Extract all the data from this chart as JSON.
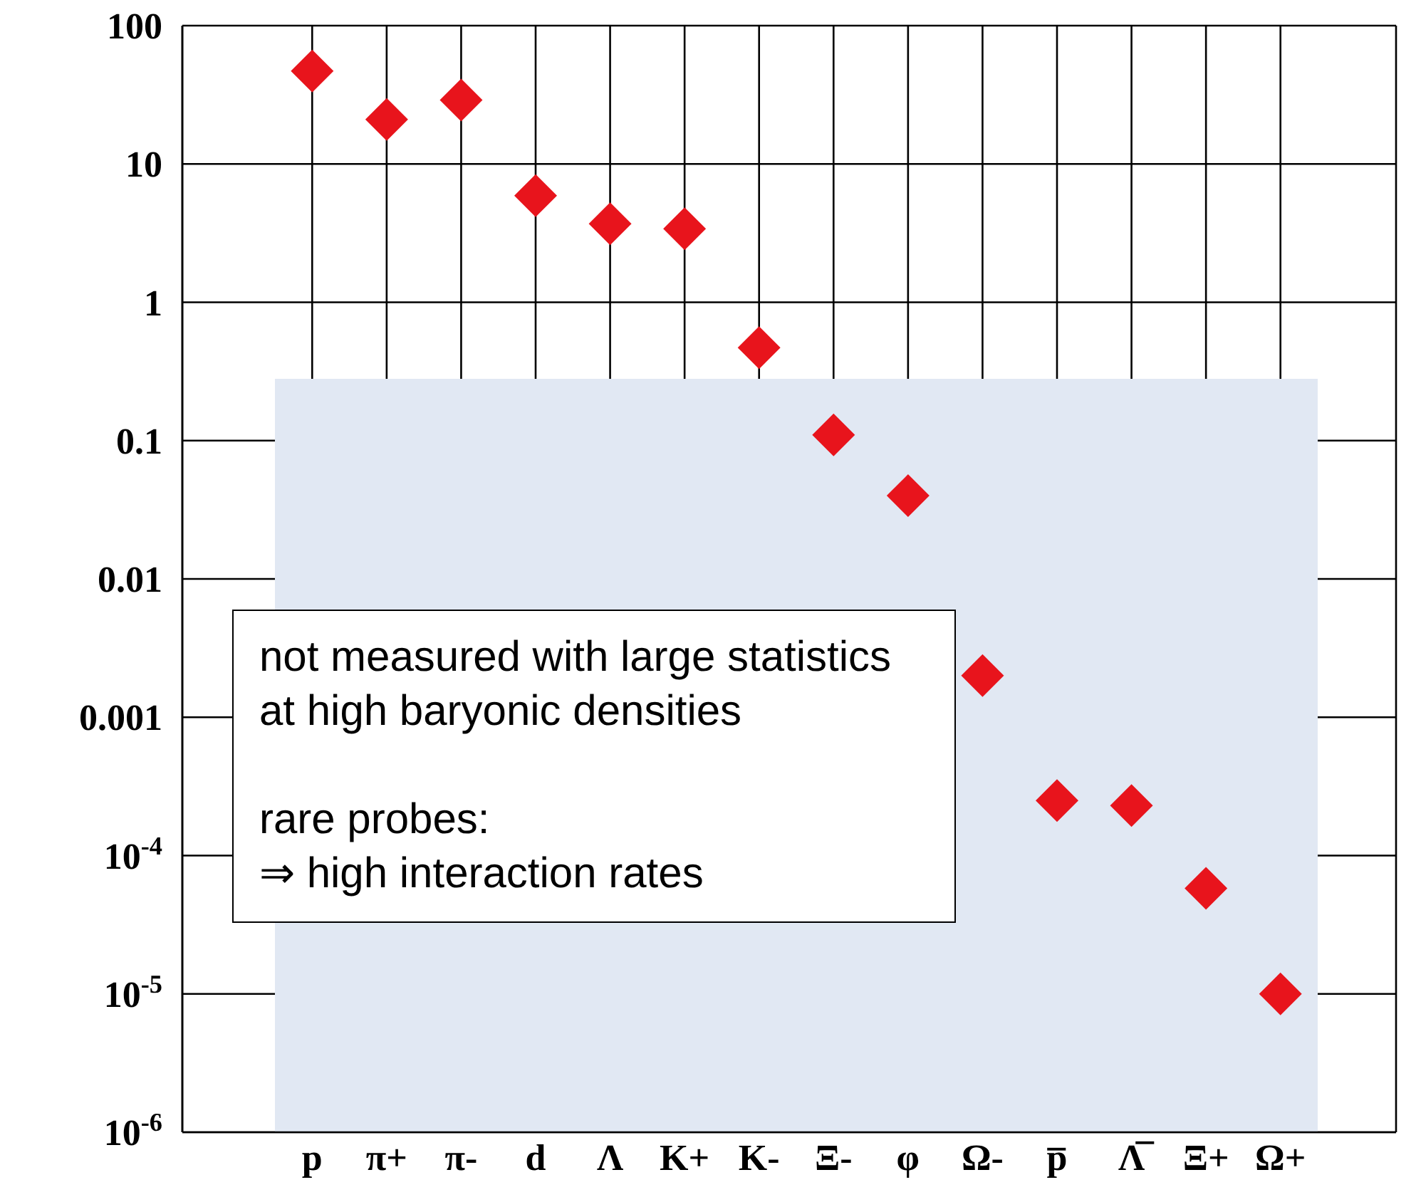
{
  "chart_data": {
    "type": "scatter",
    "categories": [
      "p",
      "π+",
      "π-",
      "d",
      "Λ",
      "K+",
      "K-",
      "Ξ-",
      "φ",
      "Ω-",
      "p̅",
      "Λ̅",
      "Ξ+",
      "Ω+"
    ],
    "series": [
      {
        "color": "#e8141c",
        "values": [
          47,
          21,
          29,
          5.9,
          3.7,
          3.4,
          0.47,
          0.11,
          0.04,
          0.002,
          0.00025,
          0.00023,
          5.8e-05,
          1e-05
        ]
      }
    ],
    "log": "y",
    "ylim": [
      1e-06,
      100
    ],
    "yticks": [
      {
        "value": 1e-06,
        "label": "10$^{-6}$"
      },
      {
        "value": 1e-05,
        "label": "10$^{-5}$"
      },
      {
        "value": 0.0001,
        "label": "10$^{-4}$"
      },
      0.001,
      0.01,
      0.1,
      1,
      10,
      100
    ],
    "grid": true,
    "marker": "diamond",
    "bands": [
      {
        "axis": "y",
        "from": 1e-06,
        "to": 0.28,
        "color": "#e1e8f3"
      }
    ],
    "annotations": [
      "not measured with large statistics at high baryonic densities",
      "rare probes:",
      "⇒ high interaction rates"
    ]
  }
}
